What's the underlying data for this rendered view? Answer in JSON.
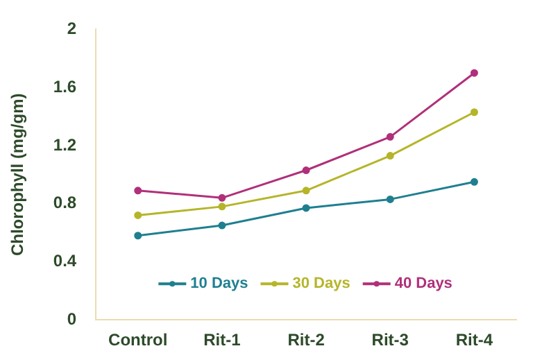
{
  "chart_data": {
    "type": "line",
    "ylabel": "Chlorophyll (mg/gm)",
    "categories": [
      "Control",
      "Rit-1",
      "Rit-2",
      "Rit-3",
      "Rit-4"
    ],
    "series": [
      {
        "name": "10 Days",
        "color": "#1f7f8f",
        "values": [
          0.58,
          0.65,
          0.77,
          0.83,
          0.95
        ]
      },
      {
        "name": "30 Days",
        "color": "#b5b52a",
        "values": [
          0.72,
          0.78,
          0.89,
          1.13,
          1.43
        ]
      },
      {
        "name": "40 Days",
        "color": "#b0307a",
        "values": [
          0.89,
          0.84,
          1.03,
          1.26,
          1.7
        ]
      }
    ],
    "ylim": [
      0,
      2
    ],
    "yticks": [
      0,
      0.4,
      0.8,
      1.2,
      1.6,
      2
    ],
    "grid": false,
    "legend": "bottom",
    "marker": "circle",
    "line_style": "solid"
  }
}
